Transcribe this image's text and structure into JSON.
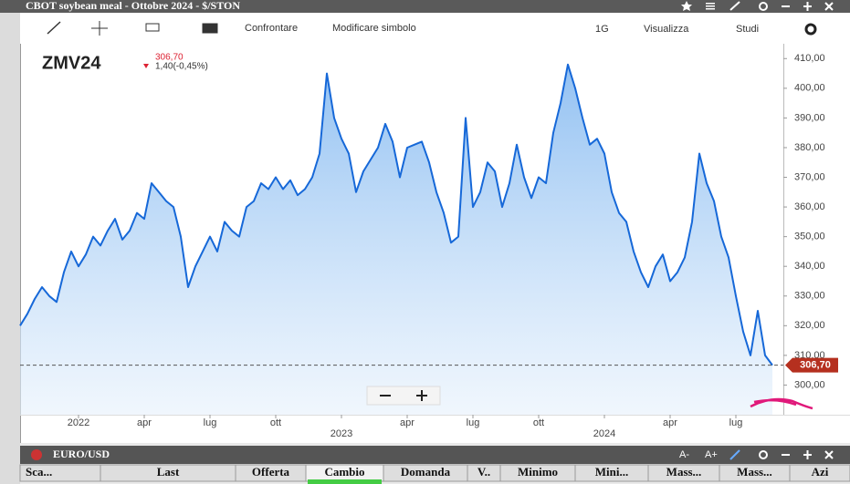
{
  "window": {
    "title": "CBOT soybean meal - Ottobre 2024 - $/STON",
    "toolbar": [
      "Confrontare",
      "Modificare simbolo",
      "1G",
      "Visualizza",
      "Studi"
    ]
  },
  "legend": {
    "symbol": "ZMV24",
    "price": "306,70",
    "change": "1,40(-0,45%)"
  },
  "chart_data": {
    "type": "area",
    "color": "#1668d8",
    "categories": [
      null,
      null,
      null,
      null,
      null,
      null,
      null,
      null,
      "2022",
      null,
      null,
      null,
      null,
      null,
      null,
      null,
      null,
      "apr",
      null,
      null,
      null,
      null,
      null,
      null,
      null,
      null,
      "lug",
      null,
      null,
      null,
      null,
      null,
      null,
      null,
      null,
      "ott",
      null,
      null,
      null,
      null,
      null,
      null,
      null,
      null,
      "2023",
      null,
      null,
      null,
      null,
      null,
      null,
      null,
      null,
      "apr",
      null,
      null,
      null,
      null,
      null,
      null,
      null,
      null,
      "lug",
      null,
      null,
      null,
      null,
      null,
      null,
      null,
      null,
      "ott",
      null,
      null,
      null,
      null,
      null,
      null,
      null,
      null,
      "2024",
      null,
      null,
      null,
      null,
      null,
      null,
      null,
      null,
      "apr",
      null,
      null,
      null,
      null,
      null,
      null,
      null,
      null,
      "lug",
      null,
      null,
      null,
      null,
      null
    ],
    "values": [
      320,
      324,
      329,
      333,
      330,
      328,
      338,
      345,
      340,
      344,
      350,
      347,
      352,
      356,
      349,
      352,
      358,
      356,
      368,
      365,
      362,
      360,
      350,
      333,
      340,
      345,
      350,
      345,
      355,
      352,
      350,
      360,
      362,
      368,
      366,
      370,
      366,
      369,
      364,
      366,
      370,
      378,
      405,
      390,
      383,
      378,
      365,
      372,
      376,
      380,
      388,
      382,
      370,
      380,
      381,
      382,
      375,
      365,
      358,
      348,
      350,
      390,
      360,
      365,
      375,
      372,
      360,
      368,
      381,
      370,
      363,
      370,
      368,
      385,
      395,
      408,
      400,
      390,
      381,
      383,
      378,
      365,
      358,
      355,
      345,
      338,
      333,
      340,
      344,
      335,
      338,
      343,
      355,
      378,
      368,
      362,
      350,
      343,
      330,
      318,
      310,
      325,
      310,
      306.7
    ],
    "ylim": [
      290,
      415
    ],
    "yticks": [
      {
        "value": 300,
        "label": "300,00"
      },
      {
        "value": 310,
        "label": "310,00"
      },
      {
        "value": 320,
        "label": "320,00"
      },
      {
        "value": 330,
        "label": "330,00"
      },
      {
        "value": 340,
        "label": "340,00"
      },
      {
        "value": 350,
        "label": "350,00"
      },
      {
        "value": 360,
        "label": "360,00"
      },
      {
        "value": 370,
        "label": "370,00"
      },
      {
        "value": 380,
        "label": "380,00"
      },
      {
        "value": 390,
        "label": "390,00"
      },
      {
        "value": 400,
        "label": "400,00"
      },
      {
        "value": 410,
        "label": "410,00"
      }
    ],
    "last_price": {
      "value": 306.7,
      "label": "306,70"
    }
  },
  "bottom_panel": {
    "title": "EURO/USD",
    "font_buttons": [
      "A-",
      "A+"
    ],
    "columns": [
      "Sca...",
      "Last",
      "Offerta",
      "Cambio",
      "Domanda",
      "V..",
      "Minimo",
      "Mini...",
      "Mass...",
      "Mass...",
      "Azi"
    ]
  }
}
